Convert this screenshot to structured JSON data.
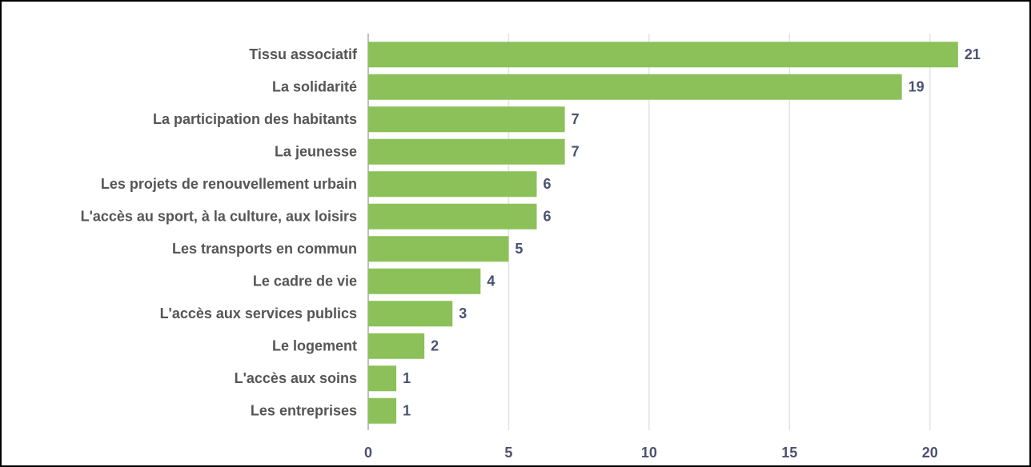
{
  "chart_data": {
    "type": "bar",
    "orientation": "horizontal",
    "categories": [
      "Tissu associatif",
      "La solidarité",
      "La participation des habitants",
      "La jeunesse",
      "Les projets de renouvellement urbain",
      "L'accès au sport, à la culture, aux loisirs",
      "Les transports en commun",
      "Le cadre de vie",
      "L'accès aux services publics",
      "Le logement",
      "L'accès aux soins",
      "Les entreprises"
    ],
    "values": [
      21,
      19,
      7,
      7,
      6,
      6,
      5,
      4,
      3,
      2,
      1,
      1
    ],
    "color": "#8bc158",
    "xlim": [
      0,
      23
    ],
    "xticks": [
      0,
      5,
      10,
      15,
      20
    ],
    "grid": true
  }
}
